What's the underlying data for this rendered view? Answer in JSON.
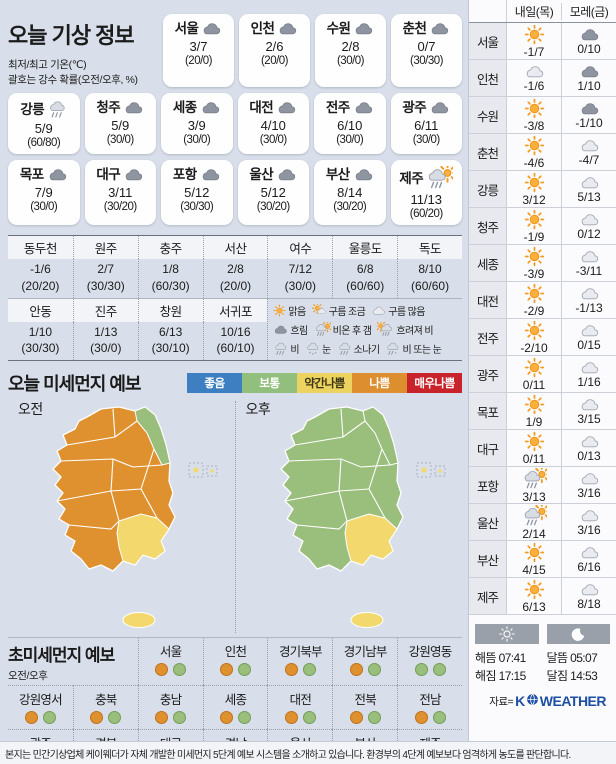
{
  "page": {
    "title": "오늘 기상 정보",
    "subtitle1": "최저/최고 기온(℃)",
    "subtitle2": "괄호는 강수 확률(오전/오후, %)",
    "footnote": "본지는 민간기상업체 케이웨더가 자체 개발한 미세먼지 5단계 예보 시스템을 소개하고 있습니다. 환경부의 4단계 예보보다 엄격하게 농도를 판단합니다."
  },
  "today": {
    "rows": [
      [
        {
          "name": "서울",
          "icon": "cloud-dark",
          "temp": "3/7",
          "prob": "(20/0)"
        },
        {
          "name": "인천",
          "icon": "cloud-dark",
          "temp": "2/6",
          "prob": "(20/0)"
        },
        {
          "name": "수원",
          "icon": "cloud-dark",
          "temp": "2/8",
          "prob": "(30/0)"
        },
        {
          "name": "춘천",
          "icon": "cloud-dark",
          "temp": "0/7",
          "prob": "(30/30)"
        }
      ],
      [
        {
          "name": "강릉",
          "icon": "rain",
          "temp": "5/9",
          "prob": "(60/80)"
        },
        {
          "name": "청주",
          "icon": "cloud-dark",
          "temp": "5/9",
          "prob": "(30/0)"
        },
        {
          "name": "세종",
          "icon": "cloud-dark",
          "temp": "3/9",
          "prob": "(30/0)"
        },
        {
          "name": "대전",
          "icon": "cloud-dark",
          "temp": "4/10",
          "prob": "(30/0)"
        },
        {
          "name": "전주",
          "icon": "cloud-dark",
          "temp": "6/10",
          "prob": "(30/0)"
        },
        {
          "name": "광주",
          "icon": "cloud-dark",
          "temp": "6/11",
          "prob": "(30/0)"
        }
      ],
      [
        {
          "name": "목포",
          "icon": "cloud-dark",
          "temp": "7/9",
          "prob": "(30/0)"
        },
        {
          "name": "대구",
          "icon": "cloud-dark",
          "temp": "3/11",
          "prob": "(30/20)"
        },
        {
          "name": "포항",
          "icon": "cloud-dark",
          "temp": "5/12",
          "prob": "(30/30)"
        },
        {
          "name": "울산",
          "icon": "cloud-dark",
          "temp": "5/12",
          "prob": "(30/20)"
        },
        {
          "name": "부산",
          "icon": "cloud-dark",
          "temp": "8/14",
          "prob": "(30/20)"
        },
        {
          "name": "제주",
          "icon": "rain-sun",
          "temp": "11/13",
          "prob": "(60/20)"
        }
      ]
    ]
  },
  "extra": {
    "groups": [
      [
        {
          "name": "동두천",
          "temp": "-1/6",
          "prob": "(20/20)"
        },
        {
          "name": "원주",
          "temp": "2/7",
          "prob": "(30/30)"
        },
        {
          "name": "충주",
          "temp": "1/8",
          "prob": "(60/30)"
        },
        {
          "name": "서산",
          "temp": "2/8",
          "prob": "(20/0)"
        },
        {
          "name": "여수",
          "temp": "7/12",
          "prob": "(30/0)"
        },
        {
          "name": "울릉도",
          "temp": "6/8",
          "prob": "(60/60)"
        },
        {
          "name": "독도",
          "temp": "8/10",
          "prob": "(60/60)"
        }
      ],
      [
        {
          "name": "안동",
          "temp": "1/10",
          "prob": "(30/30)"
        },
        {
          "name": "진주",
          "temp": "1/13",
          "prob": "(30/0)"
        },
        {
          "name": "창원",
          "temp": "6/13",
          "prob": "(30/10)"
        },
        {
          "name": "서귀포",
          "temp": "10/16",
          "prob": "(60/10)"
        }
      ]
    ]
  },
  "icon_legend": [
    [
      {
        "icon": "sun",
        "label": "맑음"
      },
      {
        "icon": "partly",
        "label": "구름 조금"
      },
      {
        "icon": "cloud-light",
        "label": "구름 많음"
      }
    ],
    [
      {
        "icon": "cloud-dark",
        "label": "흐림"
      },
      {
        "icon": "rain-sun",
        "label": "비온 후 갬"
      },
      {
        "icon": "sun-rain",
        "label": "흐려져 비"
      }
    ],
    [
      {
        "icon": "rain",
        "label": "비"
      },
      {
        "icon": "snow",
        "label": "눈"
      },
      {
        "icon": "shower",
        "label": "소나기"
      },
      {
        "icon": "rain-snow",
        "label": "비 또는 눈"
      }
    ]
  ],
  "dust": {
    "title": "오늘 미세먼지 예보",
    "levels": [
      {
        "label": "좋음",
        "color": "#3e7fc1",
        "text": "#ffffff"
      },
      {
        "label": "보통",
        "color": "#93bf7e",
        "text": "#ffffff"
      },
      {
        "label": "약간나쁨",
        "color": "#ecd35f",
        "text": "#3d3417"
      },
      {
        "label": "나쁨",
        "color": "#dd8e2e",
        "text": "#ffffff"
      },
      {
        "label": "매우나쁨",
        "color": "#c8232b",
        "text": "#ffffff"
      }
    ],
    "maps": [
      {
        "label": "오전",
        "base": "bad",
        "east_coast": "moderate",
        "southeast": "slightly_bad",
        "jeju": "slightly_bad",
        "islets": "slightly_bad"
      },
      {
        "label": "오후",
        "base": "moderate",
        "east_coast": "moderate",
        "southeast": "slightly_bad",
        "jeju": "slightly_bad",
        "islets": "slightly_bad"
      }
    ]
  },
  "ultrafine": {
    "title": "초미세먼지 예보",
    "subtitle": "오전/오후",
    "rows": [
      [
        {
          "name": "서울",
          "am": "bad",
          "pm": "moderate"
        },
        {
          "name": "인천",
          "am": "bad",
          "pm": "moderate"
        },
        {
          "name": "경기북부",
          "am": "bad",
          "pm": "moderate"
        },
        {
          "name": "경기남부",
          "am": "bad",
          "pm": "moderate"
        },
        {
          "name": "강원영동",
          "am": "moderate",
          "pm": "moderate"
        }
      ],
      [
        {
          "name": "강원영서",
          "am": "bad",
          "pm": "moderate"
        },
        {
          "name": "충북",
          "am": "bad",
          "pm": "moderate"
        },
        {
          "name": "충남",
          "am": "bad",
          "pm": "moderate"
        },
        {
          "name": "세종",
          "am": "bad",
          "pm": "moderate"
        },
        {
          "name": "대전",
          "am": "bad",
          "pm": "moderate"
        },
        {
          "name": "전북",
          "am": "bad",
          "pm": "moderate"
        },
        {
          "name": "전남",
          "am": "bad",
          "pm": "moderate"
        }
      ],
      [
        {
          "name": "광주",
          "am": "bad",
          "pm": "moderate"
        },
        {
          "name": "경북",
          "am": "bad",
          "pm": "moderate"
        },
        {
          "name": "대구",
          "am": "bad",
          "pm": "moderate"
        },
        {
          "name": "경남",
          "am": "slightly_bad",
          "pm": "slightly_bad"
        },
        {
          "name": "울산",
          "am": "slightly_bad",
          "pm": "slightly_bad"
        },
        {
          "name": "부산",
          "am": "slightly_bad",
          "pm": "slightly_bad"
        },
        {
          "name": "제주",
          "am": "slightly_bad",
          "pm": "slightly_bad"
        }
      ]
    ]
  },
  "level_palette": {
    "bad": {
      "fill": "#e0912f",
      "stroke": "#bd721a"
    },
    "moderate": {
      "fill": "#9abe7c",
      "stroke": "#739e56"
    },
    "slightly_bad": {
      "fill": "#f3d96d",
      "stroke": "#cfae3d"
    },
    "good": {
      "fill": "#3e7fc1",
      "stroke": "#2d62a0"
    }
  },
  "tomorrow": {
    "col1": "내일(목)",
    "col2": "모레(금)",
    "rows": [
      {
        "name": "서울",
        "d1_icon": "sun",
        "d1_temp": "-1/7",
        "d2_icon": "cloud-dark",
        "d2_temp": "0/10"
      },
      {
        "name": "인천",
        "d1_icon": "cloud-light",
        "d1_temp": "-1/6",
        "d2_icon": "cloud-dark",
        "d2_temp": "1/10"
      },
      {
        "name": "수원",
        "d1_icon": "sun",
        "d1_temp": "-3/8",
        "d2_icon": "cloud-dark",
        "d2_temp": "-1/10"
      },
      {
        "name": "춘천",
        "d1_icon": "sun",
        "d1_temp": "-4/6",
        "d2_icon": "cloud-light",
        "d2_temp": "-4/7"
      },
      {
        "name": "강릉",
        "d1_icon": "sun",
        "d1_temp": "3/12",
        "d2_icon": "cloud-light",
        "d2_temp": "5/13"
      },
      {
        "name": "청주",
        "d1_icon": "sun",
        "d1_temp": "-1/9",
        "d2_icon": "cloud-light",
        "d2_temp": "0/12"
      },
      {
        "name": "세종",
        "d1_icon": "sun",
        "d1_temp": "-3/9",
        "d2_icon": "cloud-light",
        "d2_temp": "-3/11"
      },
      {
        "name": "대전",
        "d1_icon": "sun",
        "d1_temp": "-2/9",
        "d2_icon": "cloud-light",
        "d2_temp": "-1/13"
      },
      {
        "name": "전주",
        "d1_icon": "sun",
        "d1_temp": "-2/10",
        "d2_icon": "cloud-light",
        "d2_temp": "0/15"
      },
      {
        "name": "광주",
        "d1_icon": "sun",
        "d1_temp": "0/11",
        "d2_icon": "cloud-light",
        "d2_temp": "1/16"
      },
      {
        "name": "목포",
        "d1_icon": "sun",
        "d1_temp": "1/9",
        "d2_icon": "cloud-light",
        "d2_temp": "3/15"
      },
      {
        "name": "대구",
        "d1_icon": "sun",
        "d1_temp": "0/11",
        "d2_icon": "cloud-light",
        "d2_temp": "0/13"
      },
      {
        "name": "포항",
        "d1_icon": "rain-sun",
        "d1_temp": "3/13",
        "d2_icon": "cloud-light",
        "d2_temp": "3/16"
      },
      {
        "name": "울산",
        "d1_icon": "rain-sun",
        "d1_temp": "2/14",
        "d2_icon": "cloud-light",
        "d2_temp": "3/16"
      },
      {
        "name": "부산",
        "d1_icon": "sun",
        "d1_temp": "4/15",
        "d2_icon": "cloud-light",
        "d2_temp": "6/16"
      },
      {
        "name": "제주",
        "d1_icon": "sun",
        "d1_temp": "6/13",
        "d2_icon": "cloud-light",
        "d2_temp": "8/18"
      }
    ]
  },
  "astro": {
    "sunrise_label": "해뜸",
    "sunrise_time": "07:41",
    "sunset_label": "해짐",
    "sunset_time": "17:15",
    "moonrise_label": "달뜸",
    "moonrise_time": "05:07",
    "moonset_label": "달짐",
    "moonset_time": "14:53",
    "source_label": "자료=",
    "brand_k": "K",
    "brand_rest": "WEATHER"
  }
}
